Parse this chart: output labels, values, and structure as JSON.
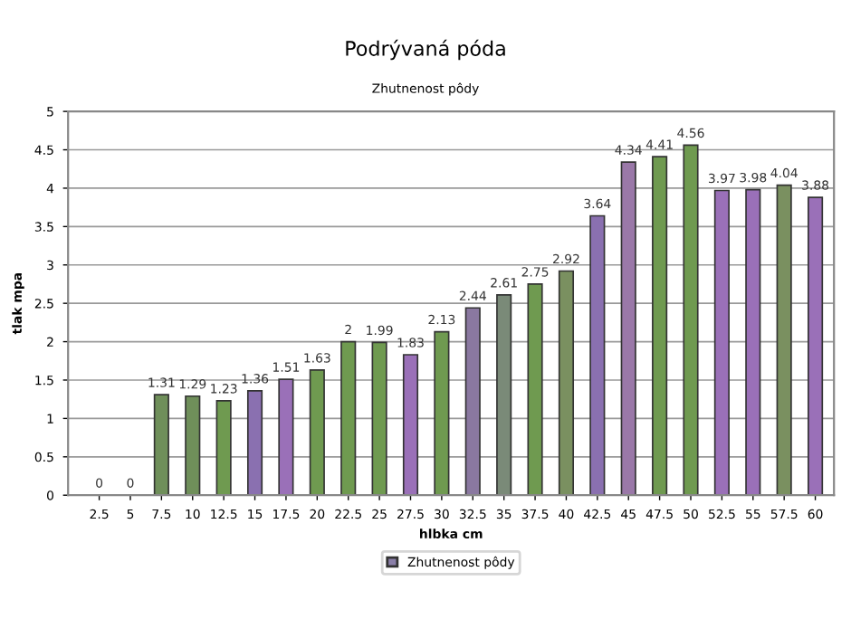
{
  "chart_data": {
    "type": "bar",
    "title": "Podrývaná póda",
    "subtitle": "Zhutnenost pôdy",
    "xlabel": "hlbka cm",
    "ylabel": "tlak mpa",
    "categories": [
      "2.5",
      "5",
      "7.5",
      "10",
      "12.5",
      "15",
      "17.5",
      "20",
      "22.5",
      "25",
      "27.5",
      "30",
      "32.5",
      "35",
      "37.5",
      "40",
      "42.5",
      "45",
      "47.5",
      "50",
      "52.5",
      "55",
      "57.5",
      "60"
    ],
    "series": [
      {
        "name": "Zhutnenost pôdy",
        "color": "#8a7fa8",
        "colors": [
          "#6f8f5a",
          "#6f8f5a",
          "#6f8f5a",
          "#6f8f5a",
          "#6f9a50",
          "#8a70b0",
          "#9a70b8",
          "#6f9a50",
          "#6f9a50",
          "#6f9a50",
          "#9a70b8",
          "#6f9a50",
          "#8a78a0",
          "#7a8a78",
          "#6f9a50",
          "#7a9060",
          "#8a70b0",
          "#9a78a8",
          "#6f9a50",
          "#6f9a50",
          "#9a70b8",
          "#9a70b8",
          "#7a9060",
          "#9a70b8"
        ],
        "values": [
          0,
          0,
          1.31,
          1.29,
          1.23,
          1.36,
          1.51,
          1.63,
          2,
          1.99,
          1.83,
          2.13,
          2.44,
          2.61,
          2.75,
          2.92,
          3.64,
          4.34,
          4.41,
          4.56,
          3.97,
          3.98,
          4.04,
          3.88
        ]
      }
    ],
    "ylim": [
      0,
      5
    ],
    "yticks": [
      0,
      0.5,
      1,
      1.5,
      2,
      2.5,
      3,
      3.5,
      4,
      4.5,
      5
    ],
    "grid": "y",
    "legend": "bottom",
    "data_labels": true
  }
}
